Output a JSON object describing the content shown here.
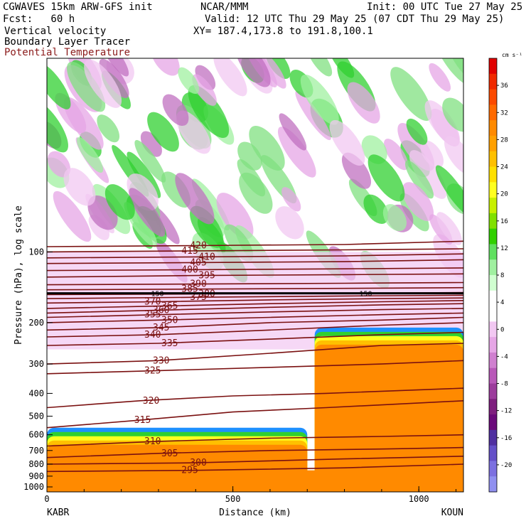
{
  "header": {
    "model": "CGWAVES 15km ARW-GFS init",
    "org": "NCAR/MMM",
    "init": "Init: 00 UTC Tue 27 May 25",
    "fcst": "Fcst:   60 h",
    "valid": "Valid: 12 UTC Thu 29 May 25 (07 CDT Thu 29 May 25)",
    "field1": "Vertical velocity",
    "xy": "XY= 187.4,173.8 to 191.8,100.1",
    "field2": "Boundary Layer Tracer",
    "field3": "Potential Temperature"
  },
  "colors": {
    "theta_contour": "#7a1010",
    "tracer_contour": "#000000"
  },
  "chart_data": {
    "type": "heatmap",
    "xlabel": "Distance (km)",
    "ylabel": "Pressure (hPa), log scale",
    "xlim": [
      0,
      1120
    ],
    "ylim": [
      1050,
      15
    ],
    "x_ticks": [
      "0",
      "500",
      "1000"
    ],
    "x_tick_values": [
      0,
      500,
      1000
    ],
    "y_ticks": [
      "100",
      "200",
      "300",
      "400",
      "500",
      "600",
      "700",
      "800",
      "900",
      "1000"
    ],
    "y_tick_values": [
      100,
      200,
      300,
      400,
      500,
      600,
      700,
      800,
      900,
      1000
    ],
    "endpoints": {
      "left": "KABR",
      "right": "KOUN"
    },
    "colorbar": {
      "units": "cm s⁻¹",
      "labels": [
        "36",
        "32",
        "28",
        "24",
        "20",
        "16",
        "12",
        "8",
        "4",
        "0",
        "-4",
        "-8",
        "-12",
        "-16",
        "-20"
      ],
      "values": [
        36,
        32,
        28,
        24,
        20,
        16,
        12,
        8,
        4,
        0,
        -4,
        -8,
        -12,
        -16,
        -20
      ],
      "colors": [
        "#e00000",
        "#f02a00",
        "#fb4a00",
        "#ff6a00",
        "#ff8a00",
        "#ffa000",
        "#ffc000",
        "#ffe000",
        "#ffff20",
        "#c8f000",
        "#80e000",
        "#30d000",
        "#60e060",
        "#a0f0a0",
        "#d0ffd0",
        "#ffffff",
        "#ffffff",
        "#f2c8f2",
        "#e6a6e6",
        "#d080d0",
        "#b858b8",
        "#9c3c9c",
        "#7e1f7e",
        "#6a0a7a",
        "#5030a0",
        "#6450c8",
        "#7c70e0",
        "#9090f0"
      ]
    },
    "theta_contours": [
      {
        "label": "295",
        "points": [
          [
            0,
            860
          ],
          [
            400,
            850
          ],
          [
            800,
            830
          ],
          [
            1120,
            800
          ]
        ]
      },
      {
        "label": "300",
        "points": [
          [
            0,
            800
          ],
          [
            400,
            790
          ],
          [
            800,
            760
          ],
          [
            1120,
            740
          ]
        ]
      },
      {
        "label": "305",
        "points": [
          [
            0,
            750
          ],
          [
            300,
            720
          ],
          [
            600,
            700
          ],
          [
            900,
            690
          ],
          [
            1120,
            680
          ]
        ]
      },
      {
        "label": "310",
        "points": [
          [
            0,
            670
          ],
          [
            300,
            640
          ],
          [
            600,
            620
          ],
          [
            900,
            610
          ],
          [
            1120,
            600
          ]
        ]
      },
      {
        "label": "315",
        "points": [
          [
            0,
            560
          ],
          [
            250,
            520
          ],
          [
            500,
            480
          ],
          [
            750,
            460
          ],
          [
            1120,
            430
          ]
        ]
      },
      {
        "label": "320",
        "points": [
          [
            0,
            460
          ],
          [
            250,
            430
          ],
          [
            500,
            410
          ],
          [
            750,
            400
          ],
          [
            1120,
            380
          ]
        ]
      },
      {
        "label": "325",
        "points": [
          [
            0,
            330
          ],
          [
            300,
            320
          ],
          [
            600,
            310
          ],
          [
            900,
            300
          ],
          [
            1120,
            290
          ]
        ]
      },
      {
        "label": "330",
        "points": [
          [
            0,
            300
          ],
          [
            300,
            290
          ],
          [
            600,
            270
          ],
          [
            900,
            250
          ],
          [
            1120,
            245
          ]
        ]
      },
      {
        "label": "335",
        "points": [
          [
            0,
            250
          ],
          [
            300,
            245
          ],
          [
            600,
            235
          ],
          [
            900,
            225
          ],
          [
            1120,
            220
          ]
        ]
      },
      {
        "label": "340",
        "points": [
          [
            0,
            230
          ],
          [
            300,
            225
          ],
          [
            600,
            215
          ],
          [
            900,
            205
          ],
          [
            1120,
            200
          ]
        ]
      },
      {
        "label": "345",
        "points": [
          [
            0,
            215
          ],
          [
            300,
            210
          ],
          [
            600,
            200
          ],
          [
            900,
            195
          ],
          [
            1120,
            190
          ]
        ]
      },
      {
        "label": "350",
        "points": [
          [
            0,
            200
          ],
          [
            300,
            195
          ],
          [
            600,
            190
          ],
          [
            900,
            185
          ],
          [
            1120,
            182
          ]
        ]
      },
      {
        "label": "355",
        "points": [
          [
            0,
            190
          ],
          [
            300,
            185
          ],
          [
            600,
            180
          ],
          [
            900,
            176
          ],
          [
            1120,
            174
          ]
        ]
      },
      {
        "label": "360",
        "points": [
          [
            0,
            182
          ],
          [
            300,
            177
          ],
          [
            600,
            172
          ],
          [
            900,
            168
          ],
          [
            1120,
            166
          ]
        ]
      },
      {
        "label": "365",
        "points": [
          [
            0,
            174
          ],
          [
            300,
            170
          ],
          [
            600,
            166
          ],
          [
            900,
            163
          ],
          [
            1120,
            161
          ]
        ]
      },
      {
        "label": "370",
        "points": [
          [
            0,
            165
          ],
          [
            300,
            163
          ],
          [
            600,
            160
          ],
          [
            900,
            158
          ],
          [
            1120,
            157
          ]
        ]
      },
      {
        "label": "375",
        "points": [
          [
            0,
            158
          ],
          [
            400,
            156
          ],
          [
            800,
            154
          ],
          [
            1120,
            153
          ]
        ]
      },
      {
        "label": "380",
        "points": [
          [
            0,
            152
          ],
          [
            400,
            151
          ],
          [
            800,
            150
          ],
          [
            1120,
            149
          ]
        ]
      },
      {
        "label": "385",
        "points": [
          [
            0,
            145
          ],
          [
            400,
            144
          ],
          [
            800,
            143
          ],
          [
            1120,
            142
          ]
        ]
      },
      {
        "label": "390",
        "points": [
          [
            0,
            138
          ],
          [
            400,
            137
          ],
          [
            800,
            136
          ],
          [
            1120,
            135
          ]
        ]
      },
      {
        "label": "395",
        "points": [
          [
            0,
            128
          ],
          [
            400,
            126
          ],
          [
            800,
            125
          ],
          [
            1120,
            124
          ]
        ]
      },
      {
        "label": "400",
        "points": [
          [
            0,
            120
          ],
          [
            400,
            119
          ],
          [
            800,
            118
          ],
          [
            1120,
            117
          ]
        ]
      },
      {
        "label": "405",
        "points": [
          [
            0,
            112
          ],
          [
            400,
            111
          ],
          [
            800,
            110
          ],
          [
            1120,
            108
          ]
        ]
      },
      {
        "label": "410",
        "points": [
          [
            0,
            106
          ],
          [
            400,
            105
          ],
          [
            800,
            104
          ],
          [
            1120,
            102
          ]
        ]
      },
      {
        "label": "415",
        "points": [
          [
            0,
            100
          ],
          [
            400,
            99
          ],
          [
            800,
            98
          ],
          [
            1120,
            97
          ]
        ]
      },
      {
        "label": "420",
        "points": [
          [
            0,
            95
          ],
          [
            400,
            94
          ],
          [
            800,
            93
          ],
          [
            1120,
            90
          ]
        ]
      }
    ],
    "tropopause_line": {
      "label": "150",
      "pressure": 150
    },
    "tracer_regions": [
      {
        "name": "lower-left boundary layer",
        "x": [
          0,
          700
        ],
        "p": [
          1000,
          560
        ]
      },
      {
        "name": "right elevated layer",
        "x": [
          720,
          1120
        ],
        "p": [
          1000,
          210
        ]
      }
    ]
  }
}
